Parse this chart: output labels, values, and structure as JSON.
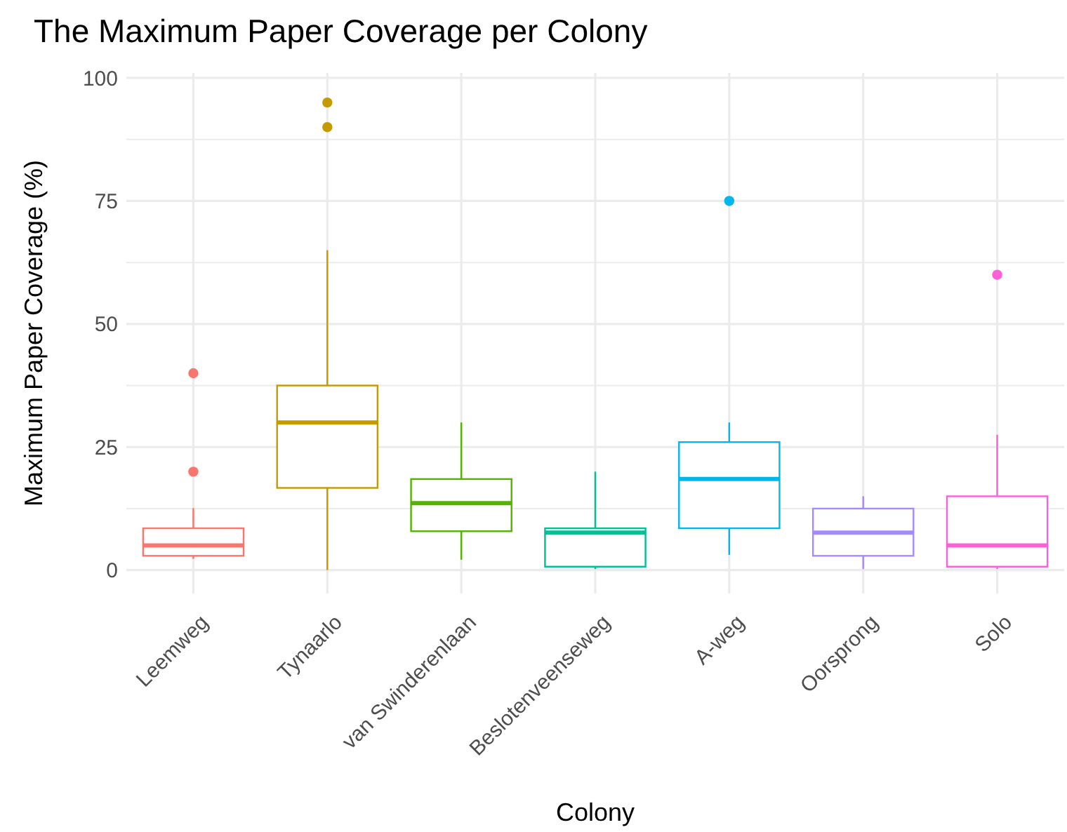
{
  "chart_data": {
    "type": "box",
    "title": "The Maximum Paper Coverage per Colony",
    "xlabel": "Colony",
    "ylabel": "Maximum Paper Coverage (%)",
    "categories": [
      "Leemweg",
      "Tynaarlo",
      "van Swinderenlaan",
      "Beslotenveenseweg",
      "A-weg",
      "Oorsprong",
      "Solo"
    ],
    "colors": [
      "#f8766d",
      "#c49a00",
      "#53b400",
      "#00c094",
      "#00b6eb",
      "#a58aff",
      "#fb61d7"
    ],
    "boxes": [
      {
        "low": 2.3,
        "q1": 2.9,
        "median": 5,
        "q3": 8.5,
        "high": 12.6,
        "outliers": [
          20,
          40
        ]
      },
      {
        "low": 0,
        "q1": 16.7,
        "median": 30,
        "q3": 37.5,
        "high": 65,
        "outliers": [
          90,
          95
        ]
      },
      {
        "low": 2.1,
        "q1": 7.9,
        "median": 13.6,
        "q3": 18.5,
        "high": 30
      },
      {
        "low": 0.2,
        "q1": 0.7,
        "median": 7.6,
        "q3": 8.5,
        "high": 20
      },
      {
        "low": 3.1,
        "q1": 8.5,
        "median": 18.5,
        "q3": 26,
        "high": 30,
        "outliers": [
          75
        ]
      },
      {
        "low": 0.2,
        "q1": 2.9,
        "median": 7.6,
        "q3": 12.5,
        "high": 15
      },
      {
        "low": 0.2,
        "q1": 0.7,
        "median": 5,
        "q3": 15,
        "high": 27.5,
        "outliers": [
          60
        ]
      }
    ],
    "ylim": [
      -4.75,
      101
    ],
    "yticks": [
      0,
      {
        "value": 12.5,
        "label": null
      },
      25,
      {
        "value": 37.5,
        "label": null
      },
      50,
      {
        "value": 62.5,
        "label": null
      },
      75,
      {
        "value": 87.5,
        "label": null
      },
      100
    ],
    "grid": true
  }
}
